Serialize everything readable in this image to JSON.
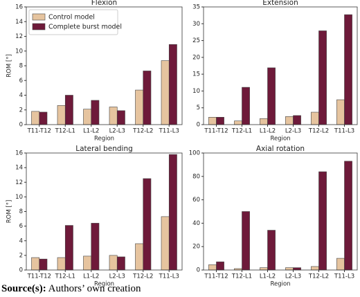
{
  "chart_data": [
    {
      "type": "bar",
      "title": "Flexion",
      "xlabel": "Region",
      "ylabel": "ROM [°]",
      "categories": [
        "T11-T12",
        "T12-L1",
        "L1-L2",
        "L2-L3",
        "T12-L2",
        "T11-L3"
      ],
      "series": [
        {
          "name": "Control model",
          "color": "#e6c49f",
          "values": [
            1.8,
            2.6,
            2.1,
            2.4,
            4.7,
            8.7
          ]
        },
        {
          "name": "Complete burst model",
          "color": "#6e1a3a",
          "values": [
            1.7,
            4.0,
            3.3,
            1.9,
            7.3,
            10.9
          ]
        }
      ],
      "ylim": [
        0,
        16
      ],
      "yticks": [
        0,
        2,
        4,
        6,
        8,
        10,
        12,
        14,
        16
      ],
      "legend": "upper left"
    },
    {
      "type": "bar",
      "title": "Extension",
      "xlabel": "Region",
      "categories": [
        "T11-T12",
        "T12-L1",
        "L1-L2",
        "L2-L3",
        "T12-L2",
        "T11-L3"
      ],
      "series": [
        {
          "name": "Control model",
          "color": "#e6c49f",
          "values": [
            2.2,
            1.1,
            1.8,
            2.4,
            3.7,
            7.4
          ]
        },
        {
          "name": "Complete burst model",
          "color": "#6e1a3a",
          "values": [
            2.2,
            11.1,
            16.9,
            2.7,
            27.9,
            32.7
          ]
        }
      ],
      "ylim": [
        0,
        35
      ],
      "yticks": [
        0,
        5,
        10,
        15,
        20,
        25,
        30,
        35
      ]
    },
    {
      "type": "bar",
      "title": "Lateral bending",
      "xlabel": "Region",
      "ylabel": "ROM [°]",
      "categories": [
        "T11-T12",
        "T12-L1",
        "L1-L2",
        "L2-L3",
        "T12-L2",
        "T11-L3"
      ],
      "series": [
        {
          "name": "Control model",
          "color": "#e6c49f",
          "values": [
            1.7,
            1.7,
            1.9,
            2.0,
            3.6,
            7.3
          ]
        },
        {
          "name": "Complete burst model",
          "color": "#6e1a3a",
          "values": [
            1.5,
            6.1,
            6.4,
            1.8,
            12.5,
            15.8
          ]
        }
      ],
      "ylim": [
        0,
        16
      ],
      "yticks": [
        0,
        2,
        4,
        6,
        8,
        10,
        12,
        14,
        16
      ]
    },
    {
      "type": "bar",
      "title": "Axial rotation",
      "xlabel": "Region",
      "categories": [
        "T11-T12",
        "T12-L1",
        "L1-L2",
        "L2-L3",
        "T12-L2",
        "T11-L3"
      ],
      "series": [
        {
          "name": "Control model",
          "color": "#e6c49f",
          "values": [
            4.5,
            1.2,
            2.0,
            2.0,
            3.0,
            10.0
          ]
        },
        {
          "name": "Complete burst model",
          "color": "#6e1a3a",
          "values": [
            7.0,
            50.0,
            34.0,
            2.0,
            84.0,
            93.0
          ]
        }
      ],
      "ylim": [
        0,
        100
      ],
      "yticks": [
        0,
        20,
        40,
        60,
        80,
        100
      ]
    }
  ],
  "source": {
    "label": "Source(s):",
    "text": "Authors’ own creation"
  }
}
